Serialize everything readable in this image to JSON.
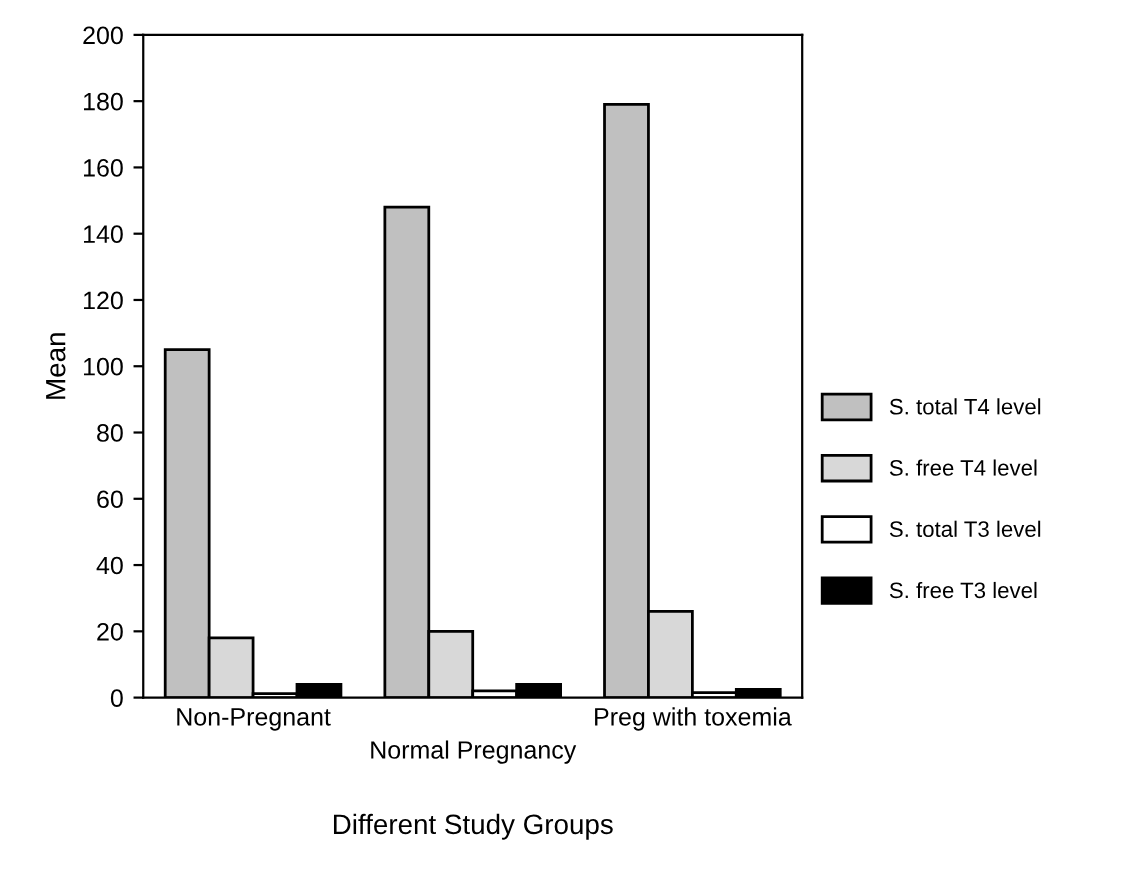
{
  "chart_data": {
    "type": "bar",
    "xlabel": "Different Study Groups",
    "ylabel": "Mean",
    "categories": [
      "Non-Pregnant",
      "Normal Pregnancy",
      "Preg with toxemia"
    ],
    "series": [
      {
        "name": "S. total T4 level",
        "color": "#c0c0c0",
        "values": [
          105,
          148,
          179
        ]
      },
      {
        "name": "S. free T4 level",
        "color": "#d8d8d8",
        "values": [
          18,
          20,
          26
        ]
      },
      {
        "name": "S. total T3 level",
        "color": "#ffffff",
        "values": [
          1.2,
          2,
          1.5
        ]
      },
      {
        "name": "S. free T3 level",
        "color": "#000000",
        "values": [
          4,
          4,
          2.5
        ]
      }
    ],
    "ylim": [
      0,
      200
    ],
    "yticks": [
      0,
      20,
      40,
      60,
      80,
      100,
      120,
      140,
      160,
      180,
      200
    ],
    "legend": "right",
    "grid": false
  }
}
